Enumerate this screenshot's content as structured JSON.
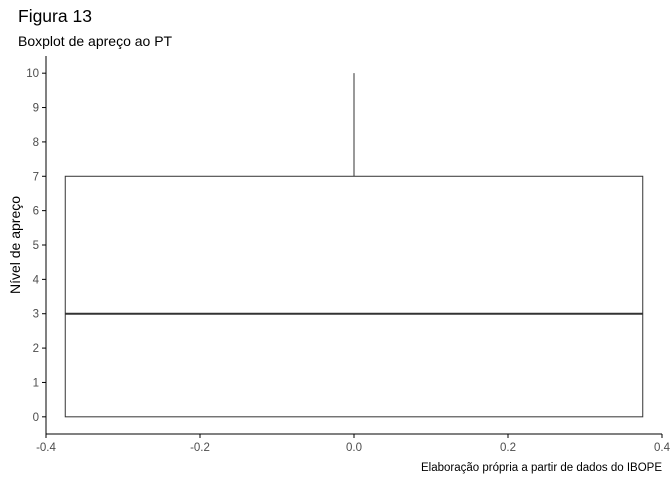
{
  "title": "Figura 13",
  "subtitle": "Boxplot de apreço ao PT",
  "caption": "Elaboração própria a partir de dados do IBOPE",
  "chart_data": {
    "type": "boxplot",
    "title": "Figura 13",
    "subtitle": "Boxplot de apreço ao PT",
    "xlabel": "",
    "ylabel": "Nível de apreço",
    "xlim": [
      -0.4,
      0.4
    ],
    "ylim": [
      0,
      10
    ],
    "x_ticks": [
      "-0.4",
      "-0.2",
      "0.0",
      "0.2",
      "0.4"
    ],
    "y_ticks": [
      "0",
      "1",
      "2",
      "3",
      "4",
      "5",
      "6",
      "7",
      "8",
      "9",
      "10"
    ],
    "box": {
      "x_center": 0,
      "x_min": -0.375,
      "x_max": 0.375,
      "min": 0,
      "q1": 0,
      "median": 3,
      "q3": 7,
      "max": 10
    },
    "grid": false,
    "legend": "none"
  },
  "colors": {
    "background": "#ffffff",
    "axis_line": "#000000",
    "tick_text": "#4d4d4d",
    "box_stroke": "#333333",
    "box_fill": "#ffffff"
  }
}
